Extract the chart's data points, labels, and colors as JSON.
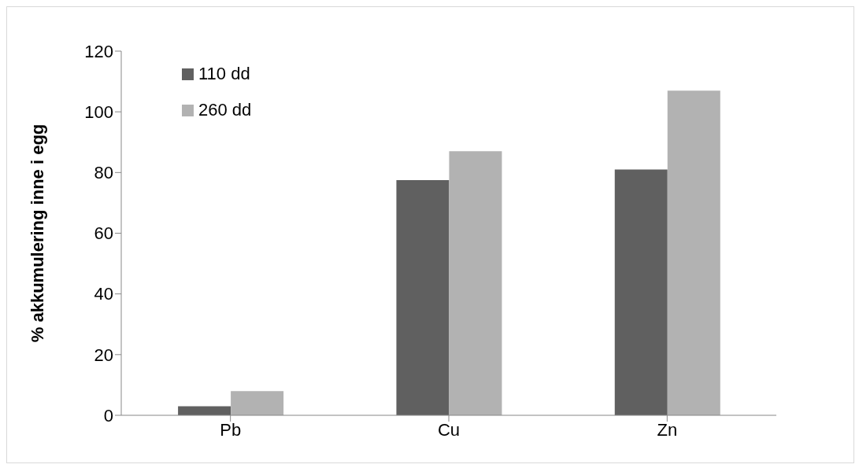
{
  "chart_data": {
    "type": "bar",
    "ylabel": "% akkumulering inne i egg",
    "categories": [
      "Pb",
      "Cu",
      "Zn"
    ],
    "series": [
      {
        "name": "110 dd",
        "color": "#606060",
        "values": [
          3,
          77.5,
          81
        ]
      },
      {
        "name": "260 dd",
        "color": "#b2b2b2",
        "values": [
          8,
          87,
          107
        ]
      }
    ],
    "ylim": [
      0,
      120
    ],
    "yticks": [
      0,
      20,
      40,
      60,
      80,
      100,
      120
    ],
    "grid": false,
    "legend": "top left"
  }
}
